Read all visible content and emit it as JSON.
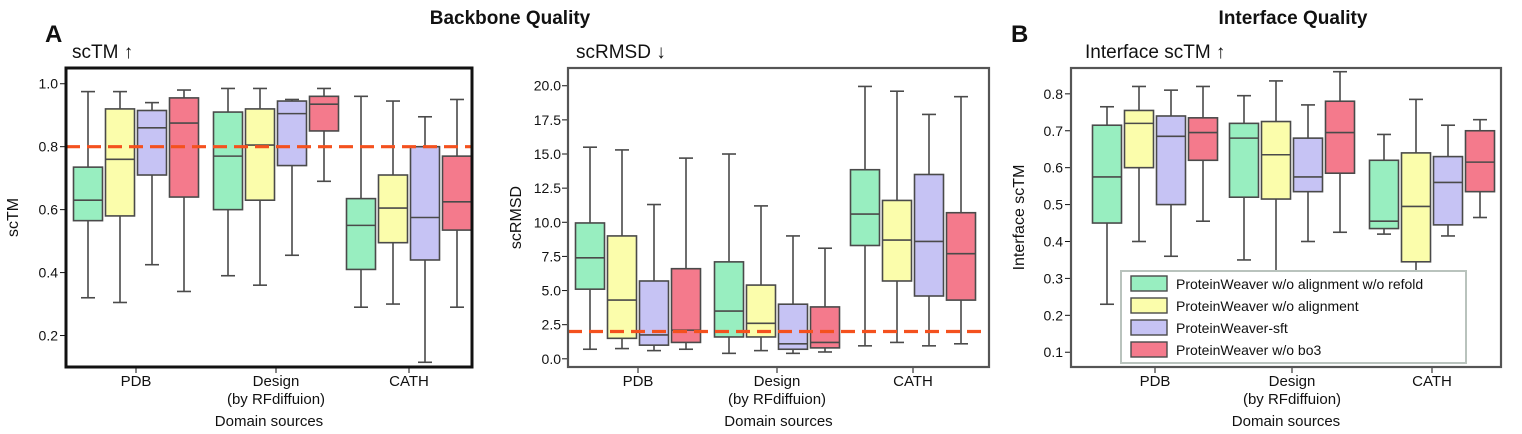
{
  "figure": {
    "header_backbone": "Backbone Quality",
    "header_interface": "Interface Quality",
    "panel_a": "A",
    "panel_b": "B"
  },
  "legend_entries": [
    "ProteinWeaver w/o alignment w/o refold",
    "ProteinWeaver w/o alignment",
    "ProteinWeaver-sft",
    "ProteinWeaver w/o bo3"
  ],
  "colors": {
    "series": [
      "#98eec0",
      "#fbfdab",
      "#c6c3f4",
      "#f47a8c"
    ],
    "threshold": "#f4511e",
    "edge": "#4a4a4a"
  },
  "chart_data": [
    {
      "type": "boxplot",
      "id": "sctm",
      "metric_label": "scTM",
      "arrow": "↑",
      "ylabel": "scTM",
      "xlabel": "Domain sources",
      "ylim": [
        0.1,
        1.05
      ],
      "yticks": [
        "0.2",
        "0.4",
        "0.6",
        "0.8",
        "1.0"
      ],
      "threshold": 0.8,
      "categories": [
        {
          "line1": "PDB",
          "line2": ""
        },
        {
          "line1": "Design",
          "line2": "(by RFdiffuion)"
        },
        {
          "line1": "CATH",
          "line2": ""
        }
      ],
      "series": [
        {
          "name": "ProteinWeaver w/o alignment w/o refold",
          "boxes": [
            [
              0.32,
              0.565,
              0.63,
              0.735,
              0.975
            ],
            [
              0.39,
              0.6,
              0.77,
              0.91,
              0.985
            ],
            [
              0.29,
              0.41,
              0.55,
              0.635,
              0.96
            ]
          ]
        },
        {
          "name": "ProteinWeaver w/o alignment",
          "boxes": [
            [
              0.305,
              0.58,
              0.76,
              0.92,
              0.975
            ],
            [
              0.36,
              0.63,
              0.805,
              0.92,
              0.985
            ],
            [
              0.3,
              0.495,
              0.605,
              0.71,
              0.945
            ]
          ]
        },
        {
          "name": "ProteinWeaver-sft",
          "boxes": [
            [
              0.425,
              0.71,
              0.86,
              0.915,
              0.94
            ],
            [
              0.455,
              0.74,
              0.905,
              0.945,
              0.95
            ],
            [
              0.115,
              0.44,
              0.575,
              0.8,
              0.895
            ]
          ]
        },
        {
          "name": "ProteinWeaver w/o bo3",
          "boxes": [
            [
              0.34,
              0.64,
              0.875,
              0.955,
              0.98
            ],
            [
              0.69,
              0.85,
              0.935,
              0.96,
              0.985
            ],
            [
              0.29,
              0.535,
              0.625,
              0.77,
              0.95
            ]
          ]
        }
      ]
    },
    {
      "type": "boxplot",
      "id": "scrmsd",
      "metric_label": "scRMSD",
      "arrow": "↓",
      "ylabel": "scRMSD",
      "xlabel": "Domain sources",
      "ylim": [
        -0.6,
        21.3
      ],
      "yticks": [
        "0.0",
        "2.5",
        "5.0",
        "7.5",
        "10.0",
        "12.5",
        "15.0",
        "17.5",
        "20.0"
      ],
      "threshold": 2.0,
      "categories": [
        {
          "line1": "PDB",
          "line2": ""
        },
        {
          "line1": "Design",
          "line2": "(by RFdiffuion)"
        },
        {
          "line1": "CATH",
          "line2": ""
        }
      ],
      "series": [
        {
          "name": "ProteinWeaver w/o alignment w/o refold",
          "boxes": [
            [
              0.7,
              5.1,
              7.4,
              9.95,
              15.5
            ],
            [
              0.4,
              1.6,
              3.5,
              7.1,
              15.0
            ],
            [
              0.95,
              8.3,
              10.6,
              13.85,
              19.95
            ]
          ]
        },
        {
          "name": "ProteinWeaver w/o alignment",
          "boxes": [
            [
              0.75,
              1.5,
              4.3,
              9.0,
              15.3
            ],
            [
              0.6,
              1.6,
              2.6,
              5.4,
              11.2
            ],
            [
              1.2,
              5.7,
              8.7,
              11.6,
              19.6
            ]
          ]
        },
        {
          "name": "ProteinWeaver-sft",
          "boxes": [
            [
              0.6,
              1.0,
              1.75,
              5.7,
              11.3
            ],
            [
              0.4,
              0.7,
              1.1,
              4.0,
              9.0
            ],
            [
              0.95,
              4.6,
              8.6,
              13.5,
              17.9
            ]
          ]
        },
        {
          "name": "ProteinWeaver w/o bo3",
          "boxes": [
            [
              0.7,
              1.2,
              2.1,
              6.6,
              14.7
            ],
            [
              0.5,
              0.8,
              1.2,
              3.8,
              8.1
            ],
            [
              1.1,
              4.3,
              7.7,
              10.7,
              19.2
            ]
          ]
        }
      ]
    },
    {
      "type": "boxplot",
      "id": "iface",
      "metric_label": "Interface scTM",
      "arrow": "↑",
      "ylabel": "Interface scTM",
      "xlabel": "Domain sources",
      "ylim": [
        0.06,
        0.87
      ],
      "yticks": [
        "0.1",
        "0.2",
        "0.3",
        "0.4",
        "0.5",
        "0.6",
        "0.7",
        "0.8"
      ],
      "threshold": null,
      "categories": [
        {
          "line1": "PDB",
          "line2": ""
        },
        {
          "line1": "Design",
          "line2": "(by RFdiffuion)"
        },
        {
          "line1": "CATH",
          "line2": ""
        }
      ],
      "series": [
        {
          "name": "ProteinWeaver w/o alignment w/o refold",
          "boxes": [
            [
              0.23,
              0.45,
              0.575,
              0.715,
              0.765
            ],
            [
              0.35,
              0.52,
              0.68,
              0.72,
              0.795
            ],
            [
              0.42,
              0.435,
              0.455,
              0.62,
              0.69
            ]
          ]
        },
        {
          "name": "ProteinWeaver w/o alignment",
          "boxes": [
            [
              0.4,
              0.6,
              0.72,
              0.755,
              0.82
            ],
            [
              0.315,
              0.515,
              0.635,
              0.725,
              0.835
            ],
            [
              0.23,
              0.345,
              0.495,
              0.64,
              0.785
            ]
          ]
        },
        {
          "name": "ProteinWeaver-sft",
          "boxes": [
            [
              0.36,
              0.5,
              0.685,
              0.74,
              0.81
            ],
            [
              0.4,
              0.535,
              0.575,
              0.68,
              0.77
            ],
            [
              0.415,
              0.445,
              0.56,
              0.63,
              0.715
            ]
          ]
        },
        {
          "name": "ProteinWeaver w/o bo3",
          "boxes": [
            [
              0.455,
              0.62,
              0.695,
              0.735,
              0.82
            ],
            [
              0.425,
              0.585,
              0.695,
              0.78,
              0.86
            ],
            [
              0.465,
              0.535,
              0.615,
              0.7,
              0.73
            ]
          ]
        }
      ]
    }
  ]
}
